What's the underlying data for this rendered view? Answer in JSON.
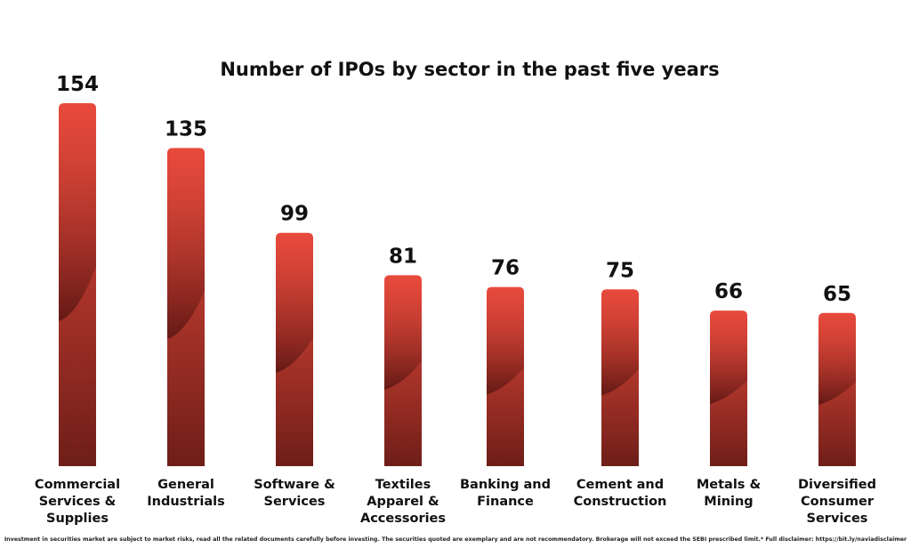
{
  "chart_data": {
    "type": "bar",
    "title": "Number of IPOs by sector in the past five years",
    "categories": [
      "Commercial Services & Supplies",
      "General Industrials",
      "Software & Services",
      "Textiles Apparel & Accessories",
      "Banking and Finance",
      "Cement and Construction",
      "Metals & Mining",
      "Diversified Consumer Services"
    ],
    "category_lines": [
      [
        "Commercial",
        "Services &",
        "Supplies"
      ],
      [
        "General",
        "Industrials"
      ],
      [
        "Software &",
        "Services"
      ],
      [
        "Textiles",
        "Apparel &",
        "Accessories"
      ],
      [
        "Banking and",
        "Finance"
      ],
      [
        "Cement and",
        "Construction"
      ],
      [
        "Metals &",
        "Mining"
      ],
      [
        "Diversified",
        "Consumer",
        "Services"
      ]
    ],
    "values": [
      154,
      135,
      99,
      81,
      76,
      75,
      66,
      65
    ],
    "xlabel": "",
    "ylabel": "",
    "grid": false,
    "colors": {
      "bar_top": "#e84a3c",
      "bar_bottom": "#6e1e18",
      "shadow": "#5a1512"
    }
  },
  "footer": "Investment in securities market are subject to market risks, read all the related documents carefully before investing. The securities quoted are exemplary and are not recommendatory. Brokerage will not exceed the SEBI prescribed limit.* Full disclaimer: https://bit.ly/naviadisclaimer"
}
